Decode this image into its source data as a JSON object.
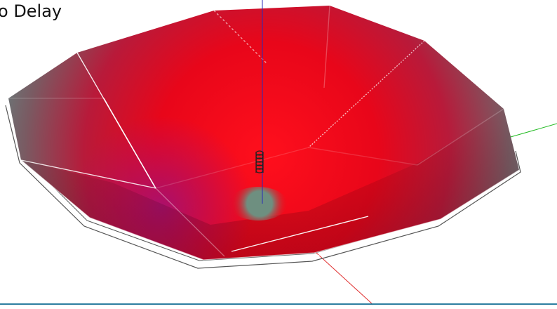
{
  "caption": "o Delay",
  "colors": {
    "dish_center": "#f20a1a",
    "dish_edge": "#5f8f8c",
    "dish_magenta": "#a8106f",
    "feed_spot": "#6e8f80",
    "axis_x": "#e03030",
    "axis_y": "#22bb22",
    "axis_z": "#2a2ab8",
    "wireframe": "#555555",
    "bottom_rule": "#2d7fa0"
  },
  "icons": {
    "feed": "helix-antenna-icon"
  }
}
